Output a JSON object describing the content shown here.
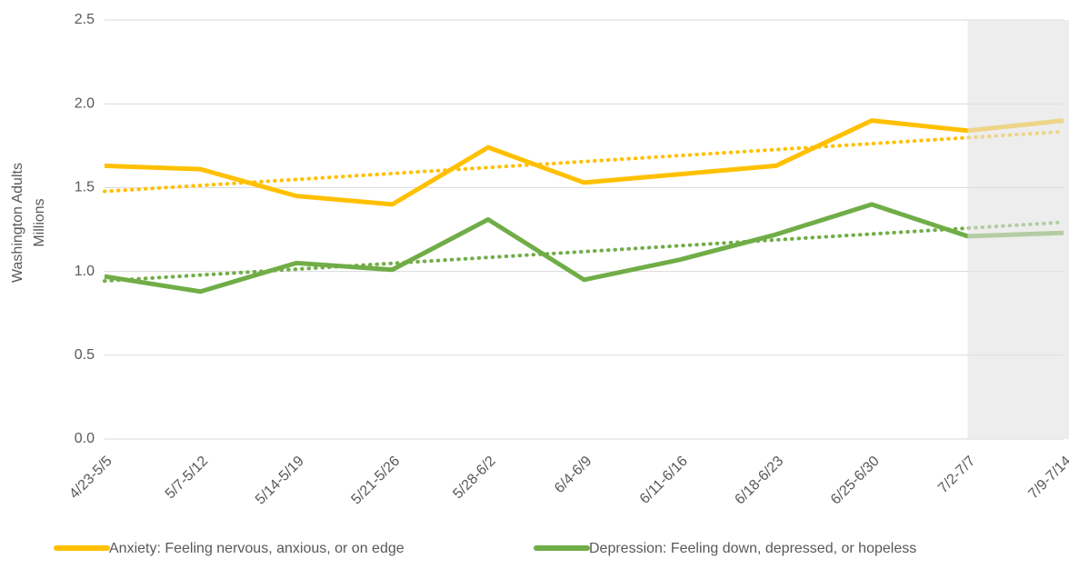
{
  "chart_data": {
    "type": "line",
    "y_axis_title": [
      "Washington Adults",
      "Millions"
    ],
    "categories": [
      "4/23-5/5",
      "5/7-5/12",
      "5/14-5/19",
      "5/21-5/26",
      "5/28-6/2",
      "6/4-6/9",
      "6/11-6/16",
      "6/18-6/23",
      "6/25-6/30",
      "7/2-7/7",
      "7/9-7/14"
    ],
    "series": [
      {
        "name": "Anxiety: Feeling nervous, anxious, or on edge",
        "color": "#ffc000",
        "values": [
          1.63,
          1.61,
          1.45,
          1.4,
          1.74,
          1.53,
          1.58,
          1.63,
          1.9,
          1.84,
          1.9
        ]
      },
      {
        "name": "Depression: Feeling down, depressed, or hopeless",
        "color": "#70ad47",
        "values": [
          0.97,
          0.88,
          1.05,
          1.01,
          1.31,
          0.95,
          1.07,
          1.22,
          1.4,
          1.21,
          1.23
        ]
      }
    ],
    "ylim": [
      0,
      2.5
    ],
    "yticks": [
      {
        "value": 0,
        "label": "0.0"
      },
      0.5,
      {
        "value": 1,
        "label": "1.0"
      },
      1.5,
      {
        "value": 2,
        "label": "2.0"
      },
      2.5
    ],
    "grid": true,
    "trendline": true,
    "shade_from": "7/2-7/7",
    "legend": "bottom"
  }
}
